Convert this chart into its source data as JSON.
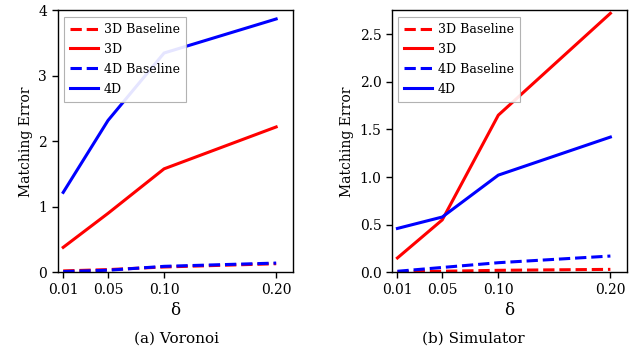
{
  "x": [
    0.01,
    0.05,
    0.1,
    0.2
  ],
  "voronoi": {
    "3d_baseline": [
      0.02,
      0.04,
      0.08,
      0.13
    ],
    "3d": [
      0.38,
      0.9,
      1.58,
      2.22
    ],
    "4d_baseline": [
      0.01,
      0.03,
      0.09,
      0.14
    ],
    "4d": [
      1.22,
      2.32,
      3.35,
      3.87
    ]
  },
  "simulator": {
    "3d_baseline": [
      0.005,
      0.01,
      0.02,
      0.03
    ],
    "3d": [
      0.15,
      0.55,
      1.65,
      2.72
    ],
    "4d_baseline": [
      0.01,
      0.05,
      0.1,
      0.17
    ],
    "4d": [
      0.46,
      0.58,
      1.02,
      1.42
    ]
  },
  "voronoi_ylim": [
    0,
    4
  ],
  "voronoi_yticks": [
    0,
    1,
    2,
    3,
    4
  ],
  "simulator_ylim": [
    0,
    2.75
  ],
  "simulator_yticks": [
    0.0,
    0.5,
    1.0,
    1.5,
    2.0,
    2.5
  ],
  "colors": {
    "3d": "#FF0000",
    "4d": "#0000FF"
  },
  "xlabel": "δ",
  "ylabel": "Matching Error",
  "xticks": [
    0.01,
    0.05,
    0.1,
    0.2
  ],
  "xtick_labels": [
    "0.01",
    "0.05",
    "0.10",
    "0.20"
  ],
  "legend_labels": [
    "3D Baseline",
    "3D",
    "4D Baseline",
    "4D"
  ],
  "caption_a": "(a) Voronoi",
  "caption_b": "(b) Simulator",
  "linewidth": 2.2
}
